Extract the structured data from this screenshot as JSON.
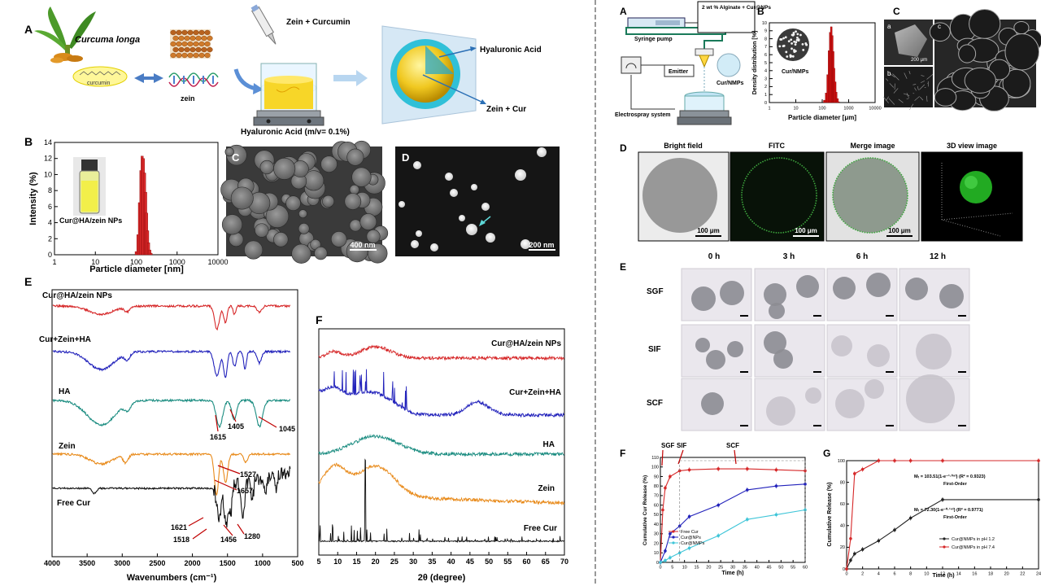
{
  "left": {
    "panel_A": {
      "letter": "A",
      "plant_name": "Curcuma longa",
      "curcumin_label": "curcumin",
      "zein_label": "zein",
      "step_label": "Zein + Curcumin",
      "ha_label": "Hyaluronic Acid (m/v= 0.1%)",
      "particle_labels": [
        "Hyaluronic Acid",
        "Zein + Cur"
      ]
    },
    "panel_B": {
      "letter": "B",
      "inset_label": "Cur@HA/zein NPs"
    },
    "panel_C": {
      "letter": "C",
      "scale": "400 nm"
    },
    "panel_D": {
      "letter": "D",
      "scale": "200 nm"
    },
    "panel_E": {
      "letter": "E",
      "series_labels": [
        "Cur@HA/zein NPs",
        "Cur+Zein+HA",
        "HA",
        "Zein",
        "Free Cur"
      ],
      "peak_labels": [
        "1615",
        "1405",
        "1045",
        "1527",
        "1657",
        "1621",
        "1518",
        "1456",
        "1280"
      ]
    },
    "panel_F": {
      "letter": "F",
      "series_labels": [
        "Cur@HA/zein NPs",
        "Cur+Zein+HA",
        "HA",
        "Zein",
        "Free Cur"
      ]
    }
  },
  "right": {
    "panel_A": {
      "letter": "A",
      "labels": {
        "alginate": "2 wt % Alginate + Cur@NPs",
        "pump": "Syringe pump",
        "emitter": "Emitter",
        "system": "Electrospray system",
        "beads": "Cur/NMPs"
      }
    },
    "panel_B": {
      "letter": "B",
      "inset": "Cur/NMPs"
    },
    "panel_C": {
      "letter": "C",
      "sub": [
        "a",
        "b",
        "c"
      ],
      "scale": "200 μm"
    },
    "panel_D": {
      "letter": "D",
      "titles": [
        "Bright field",
        "FITC",
        "Merge image",
        "3D view image"
      ],
      "scale": "100 μm"
    },
    "panel_E": {
      "letter": "E",
      "times": [
        "0 h",
        "3 h",
        "6 h",
        "12 h"
      ],
      "media": [
        "SGF",
        "SIF",
        "SCF"
      ]
    },
    "panel_F": {
      "letter": "F",
      "phases": [
        "SGF",
        "SIF",
        "SCF"
      ]
    },
    "panel_G": {
      "letter": "G",
      "eq1": "Mₜ = 103.51(1-e⁻¹·⁰⁹ᵗ) (R² = 0.9323)",
      "eq1_model": "First-Order",
      "eq2": "Mₜ = 72.30(1-e⁻⁰·¹⁴ᵗ) (R² = 0.9771)",
      "eq2_model": "First-Order"
    }
  },
  "colors": {
    "red": "#d62728",
    "blue": "#2222bb",
    "teal": "#1a8c80",
    "orange": "#e88a1a",
    "black": "#111111",
    "cyan": "#3ec5d8"
  },
  "chart_data": [
    {
      "type": "bar",
      "panel": "left-B",
      "xlabel": "Particle diameter [nm]",
      "ylabel": "Intensity (%)",
      "xscale": "log",
      "xlim": [
        1,
        10000
      ],
      "ylim": [
        0,
        14
      ],
      "xticks": [
        "1",
        "10",
        "100",
        "1000",
        "10000"
      ],
      "yticks": [
        "0",
        "2",
        "4",
        "6",
        "8",
        "10",
        "12",
        "14"
      ],
      "x": [
        100,
        110,
        120,
        130,
        140,
        150,
        160,
        170,
        180,
        190,
        200,
        215,
        230
      ],
      "values": [
        0.4,
        2.5,
        6.5,
        10.5,
        12.3,
        12.0,
        10.2,
        7.8,
        5.2,
        3.0,
        1.5,
        0.6,
        0.2
      ]
    },
    {
      "type": "line",
      "panel": "left-E",
      "xlabel": "Wavenumbers (cm⁻¹)",
      "xlim": [
        4000,
        500
      ],
      "xticks": [
        "4000",
        "3500",
        "3000",
        "2500",
        "2000",
        "1500",
        "1000",
        "500"
      ],
      "series": [
        {
          "name": "Cur@HA/zein NPs"
        },
        {
          "name": "Cur+Zein+HA"
        },
        {
          "name": "HA"
        },
        {
          "name": "Zein"
        },
        {
          "name": "Free Cur"
        }
      ]
    },
    {
      "type": "line",
      "panel": "left-F",
      "xlabel": "2θ (degree)",
      "xlim": [
        5,
        70
      ],
      "xticks": [
        "5",
        "10",
        "15",
        "20",
        "25",
        "30",
        "35",
        "40",
        "45",
        "50",
        "55",
        "60",
        "65",
        "70"
      ],
      "series": [
        {
          "name": "Cur@HA/zein NPs"
        },
        {
          "name": "Cur+Zein+HA"
        },
        {
          "name": "HA"
        },
        {
          "name": "Zein"
        },
        {
          "name": "Free Cur"
        }
      ]
    },
    {
      "type": "bar",
      "panel": "right-B",
      "xlabel": "Particle diameter [μm]",
      "ylabel": "Density distribution [%]",
      "xscale": "log",
      "xlim": [
        1,
        10000
      ],
      "ylim": [
        0,
        10
      ],
      "xticks": [
        "1",
        "10",
        "100",
        "1000",
        "10000"
      ],
      "yticks": [
        "0",
        "1",
        "2",
        "3",
        "4",
        "5",
        "6",
        "7",
        "8",
        "9",
        "10"
      ],
      "x": [
        120,
        140,
        160,
        180,
        200,
        220,
        240,
        260,
        280,
        310,
        340,
        380,
        420
      ],
      "values": [
        0.3,
        1.2,
        3.5,
        6.5,
        8.8,
        9.5,
        8.4,
        6.4,
        4.3,
        2.6,
        1.3,
        0.5,
        0.1
      ]
    },
    {
      "type": "line",
      "panel": "right-F",
      "xlabel": "Time (h)",
      "ylabel": "Cumulative Cur Release (%)",
      "xlim": [
        0,
        60
      ],
      "ylim": [
        0,
        110
      ],
      "xticks": [
        "0",
        "5",
        "10",
        "15",
        "20",
        "25",
        "30",
        "35",
        "40",
        "45",
        "50",
        "55",
        "60"
      ],
      "yticks": [
        "0",
        "10",
        "20",
        "30",
        "40",
        "50",
        "60",
        "70",
        "80",
        "90",
        "100",
        "110"
      ],
      "series": [
        {
          "name": "Free Cur",
          "x": [
            0,
            1,
            2,
            4,
            8,
            12,
            24,
            36,
            48,
            60
          ],
          "values": [
            0,
            55,
            78,
            90,
            96,
            97,
            98,
            98,
            97,
            96
          ]
        },
        {
          "name": "Cur@NPs",
          "x": [
            0,
            2,
            4,
            8,
            12,
            24,
            36,
            48,
            60
          ],
          "values": [
            0,
            12,
            30,
            38,
            48,
            60,
            76,
            80,
            82
          ]
        },
        {
          "name": "Cur@NMPs",
          "x": [
            0,
            2,
            4,
            8,
            12,
            24,
            36,
            48,
            60
          ],
          "values": [
            0,
            2,
            5,
            10,
            15,
            28,
            45,
            50,
            55
          ]
        }
      ]
    },
    {
      "type": "line",
      "panel": "right-G",
      "xlabel": "Time (h)",
      "ylabel": "Cumulative Release (%)",
      "xlim": [
        0,
        24
      ],
      "ylim": [
        0,
        100
      ],
      "xticks": [
        "0",
        "2",
        "4",
        "6",
        "8",
        "10",
        "12",
        "14",
        "16",
        "18",
        "20",
        "22",
        "24"
      ],
      "yticks": [
        "0",
        "20",
        "40",
        "60",
        "80",
        "100"
      ],
      "series": [
        {
          "name": "Cur@NMPs in pH 1.2",
          "x": [
            0,
            0.5,
            1,
            2,
            4,
            6,
            8,
            12,
            24
          ],
          "values": [
            0,
            8,
            14,
            18,
            26,
            36,
            47,
            64,
            64
          ]
        },
        {
          "name": "Cur@NMPs in pH 7.4",
          "x": [
            0,
            0.5,
            1,
            2,
            4,
            6,
            8,
            12,
            24
          ],
          "values": [
            0,
            28,
            88,
            92,
            100,
            100,
            100,
            100,
            100
          ]
        }
      ]
    }
  ]
}
